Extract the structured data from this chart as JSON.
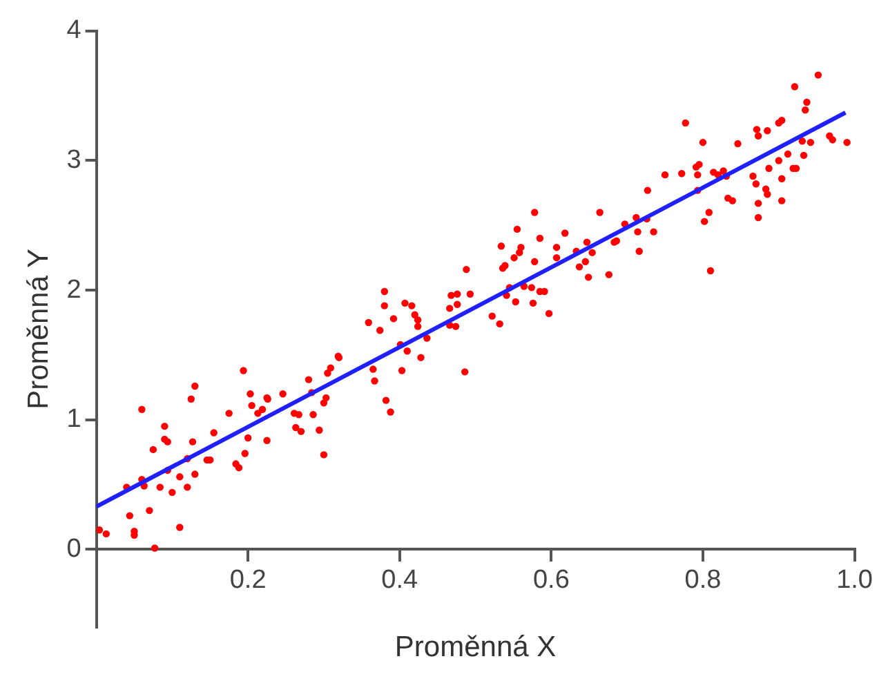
{
  "chart_data": {
    "type": "scatter",
    "xlabel": "Proměnná X",
    "ylabel": "Proměnná Y",
    "xlim": [
      0,
      1
    ],
    "ylim": [
      -0.6,
      4
    ],
    "xticks": [
      0.2,
      0.4,
      0.6,
      0.8,
      {
        "value": 1,
        "label": "1.0"
      }
    ],
    "yticks": [
      0,
      1,
      2,
      3,
      4
    ],
    "grid": false,
    "legend": false,
    "marker": "circle",
    "series": [
      {
        "color": "#ff0000",
        "x": [
          0.004,
          0.013,
          0.05,
          0.05,
          0.044,
          0.07,
          0.077,
          0.11,
          0.04,
          0.06,
          0.063,
          0.084,
          0.1,
          0.06,
          0.075,
          0.09,
          0.09,
          0.094,
          0.094,
          0.11,
          0.12,
          0.13,
          0.12,
          0.127,
          0.125,
          0.13,
          0.146,
          0.15,
          0.155,
          0.175,
          0.184,
          0.188,
          0.194,
          0.196,
          0.2,
          0.203,
          0.205,
          0.213,
          0.219,
          0.225,
          0.226,
          0.225,
          0.246,
          0.261,
          0.267,
          0.263,
          0.27,
          0.28,
          0.284,
          0.286,
          0.294,
          0.3,
          0.3,
          0.303,
          0.305,
          0.309,
          0.319,
          0.32,
          0.359,
          0.374,
          0.38,
          0.38,
          0.392,
          0.365,
          0.367,
          0.382,
          0.388,
          0.403,
          0.401,
          0.41,
          0.428,
          0.407,
          0.416,
          0.42,
          0.424,
          0.424,
          0.436,
          0.468,
          0.476,
          0.466,
          0.476,
          0.466,
          0.474,
          0.488,
          0.493,
          0.486,
          0.522,
          0.532,
          0.534,
          0.536,
          0.539,
          0.545,
          0.541,
          0.553,
          0.551,
          0.558,
          0.56,
          0.555,
          0.564,
          0.574,
          0.578,
          0.576,
          0.578,
          0.585,
          0.585,
          0.591,
          0.597,
          0.607,
          0.607,
          0.618,
          0.633,
          0.637,
          0.645,
          0.647,
          0.654,
          0.649,
          0.664,
          0.676,
          0.683,
          0.686,
          0.716,
          0.697,
          0.712,
          0.714,
          0.727,
          0.726,
          0.735,
          0.75,
          0.772,
          0.777,
          0.791,
          0.795,
          0.793,
          0.793,
          0.8,
          0.802,
          0.808,
          0.81,
          0.814,
          0.82,
          0.827,
          0.831,
          0.833,
          0.839,
          0.846,
          0.866,
          0.87,
          0.873,
          0.873,
          0.871,
          0.873,
          0.883,
          0.885,
          0.887,
          0.885,
          0.904,
          0.904,
          0.9,
          0.9,
          0.904,
          0.912,
          0.919,
          0.923,
          0.921,
          0.933,
          0.935,
          0.937,
          0.931,
          0.942,
          0.952,
          0.967,
          0.971,
          0.99
        ],
        "values": [
          0.15,
          0.12,
          0.14,
          0.11,
          0.26,
          0.3,
          0.01,
          0.17,
          0.48,
          0.54,
          0.49,
          0.48,
          0.44,
          1.08,
          0.77,
          0.95,
          0.85,
          0.83,
          0.61,
          0.56,
          0.48,
          0.58,
          0.7,
          0.83,
          1.16,
          1.26,
          0.69,
          0.69,
          0.9,
          1.05,
          0.66,
          0.63,
          1.38,
          0.74,
          0.86,
          1.2,
          1.11,
          1.05,
          1.08,
          1.17,
          1.16,
          0.84,
          1.2,
          1.05,
          1.04,
          0.94,
          0.91,
          1.31,
          1.21,
          1.04,
          0.92,
          0.73,
          1.13,
          1.17,
          1.36,
          1.4,
          1.49,
          1.48,
          1.75,
          1.69,
          1.99,
          1.88,
          1.78,
          1.39,
          1.3,
          1.15,
          1.06,
          1.38,
          1.58,
          1.53,
          1.48,
          1.9,
          1.88,
          1.81,
          1.77,
          1.72,
          1.63,
          1.96,
          1.97,
          1.86,
          1.89,
          1.73,
          1.72,
          2.16,
          1.97,
          1.37,
          1.8,
          1.74,
          2.34,
          2.17,
          2.19,
          2.02,
          1.96,
          1.91,
          2.25,
          2.29,
          2.33,
          2.47,
          2.03,
          2.02,
          2.22,
          1.9,
          2.6,
          2.4,
          1.99,
          1.99,
          1.82,
          2.33,
          2.25,
          2.44,
          2.3,
          2.18,
          2.22,
          2.37,
          2.29,
          2.1,
          2.6,
          2.12,
          2.37,
          2.38,
          2.3,
          2.51,
          2.56,
          2.45,
          2.77,
          2.55,
          2.45,
          2.89,
          2.9,
          3.29,
          2.95,
          2.97,
          2.89,
          2.77,
          3.14,
          2.53,
          2.6,
          2.15,
          2.91,
          2.89,
          2.92,
          2.88,
          2.71,
          2.69,
          3.13,
          2.88,
          2.82,
          2.67,
          2.56,
          3.24,
          3.19,
          2.78,
          2.74,
          2.94,
          3.23,
          2.86,
          2.69,
          3,
          3.29,
          3.31,
          3.05,
          2.94,
          2.94,
          3.57,
          3.04,
          3.39,
          3.45,
          3.15,
          3.14,
          3.66,
          3.19,
          3.16,
          3.14
        ]
      },
      {
        "type": "line",
        "color": "#2020ff",
        "x": [
          0,
          0.988
        ],
        "values": [
          0.33,
          3.37
        ],
        "marker": "none"
      }
    ]
  }
}
